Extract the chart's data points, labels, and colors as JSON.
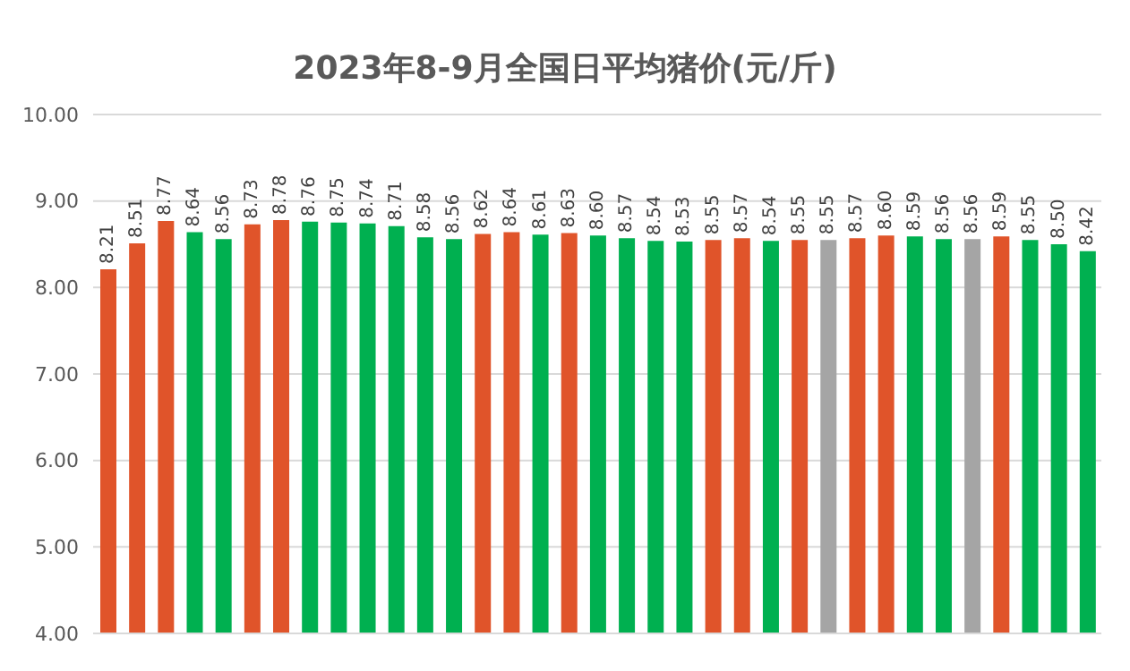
{
  "chart_data": {
    "type": "bar",
    "title": "2023年8-9月全国日平均猪价(元/斤)",
    "categories": [
      null,
      null,
      null,
      null,
      null,
      null,
      null,
      null,
      null,
      null,
      null,
      null,
      null,
      null,
      null,
      null,
      null,
      null,
      null,
      null,
      null,
      null,
      null,
      null,
      null,
      null,
      null,
      null,
      null,
      null,
      null,
      null,
      null,
      null,
      null
    ],
    "values": [
      8.21,
      8.51,
      8.77,
      8.64,
      8.56,
      8.73,
      8.78,
      8.76,
      8.75,
      8.74,
      8.71,
      8.58,
      8.56,
      8.62,
      8.64,
      8.61,
      8.63,
      8.6,
      8.57,
      8.54,
      8.53,
      8.55,
      8.57,
      8.54,
      8.55,
      8.55,
      8.57,
      8.6,
      8.59,
      8.56,
      8.56,
      8.59,
      8.55,
      8.5,
      8.42
    ],
    "value_labels": [
      "8.21",
      "8.51",
      "8.77",
      "8.64",
      "8.56",
      "8.73",
      "8.78",
      "8.76",
      "8.75",
      "8.74",
      "8.71",
      "8.58",
      "8.56",
      "8.62",
      "8.64",
      "8.61",
      "8.63",
      "8.60",
      "8.57",
      "8.54",
      "8.53",
      "8.55",
      "8.57",
      "8.54",
      "8.55",
      "8.55",
      "8.57",
      "8.60",
      "8.59",
      "8.56",
      "8.56",
      "8.59",
      "8.55",
      "8.50",
      "8.42"
    ],
    "colors": [
      "#e0542a",
      "#e0542a",
      "#e0542a",
      "#00b050",
      "#00b050",
      "#e0542a",
      "#e0542a",
      "#00b050",
      "#00b050",
      "#00b050",
      "#00b050",
      "#00b050",
      "#00b050",
      "#e0542a",
      "#e0542a",
      "#00b050",
      "#e0542a",
      "#00b050",
      "#00b050",
      "#00b050",
      "#00b050",
      "#e0542a",
      "#e0542a",
      "#00b050",
      "#e0542a",
      "#a5a5a5",
      "#e0542a",
      "#e0542a",
      "#00b050",
      "#00b050",
      "#a5a5a5",
      "#e0542a",
      "#00b050",
      "#00b050",
      "#00b050"
    ],
    "ylim": [
      4,
      10
    ],
    "yticks": [
      {
        "value": 4,
        "label": "4.00"
      },
      {
        "value": 5,
        "label": "5.00"
      },
      {
        "value": 6,
        "label": "6.00"
      },
      {
        "value": 7,
        "label": "7.00"
      },
      {
        "value": 8,
        "label": "8.00"
      },
      {
        "value": 9,
        "label": "9.00"
      },
      {
        "value": 10,
        "label": "10.00"
      }
    ],
    "grid": "y",
    "tick_labels": "y"
  }
}
